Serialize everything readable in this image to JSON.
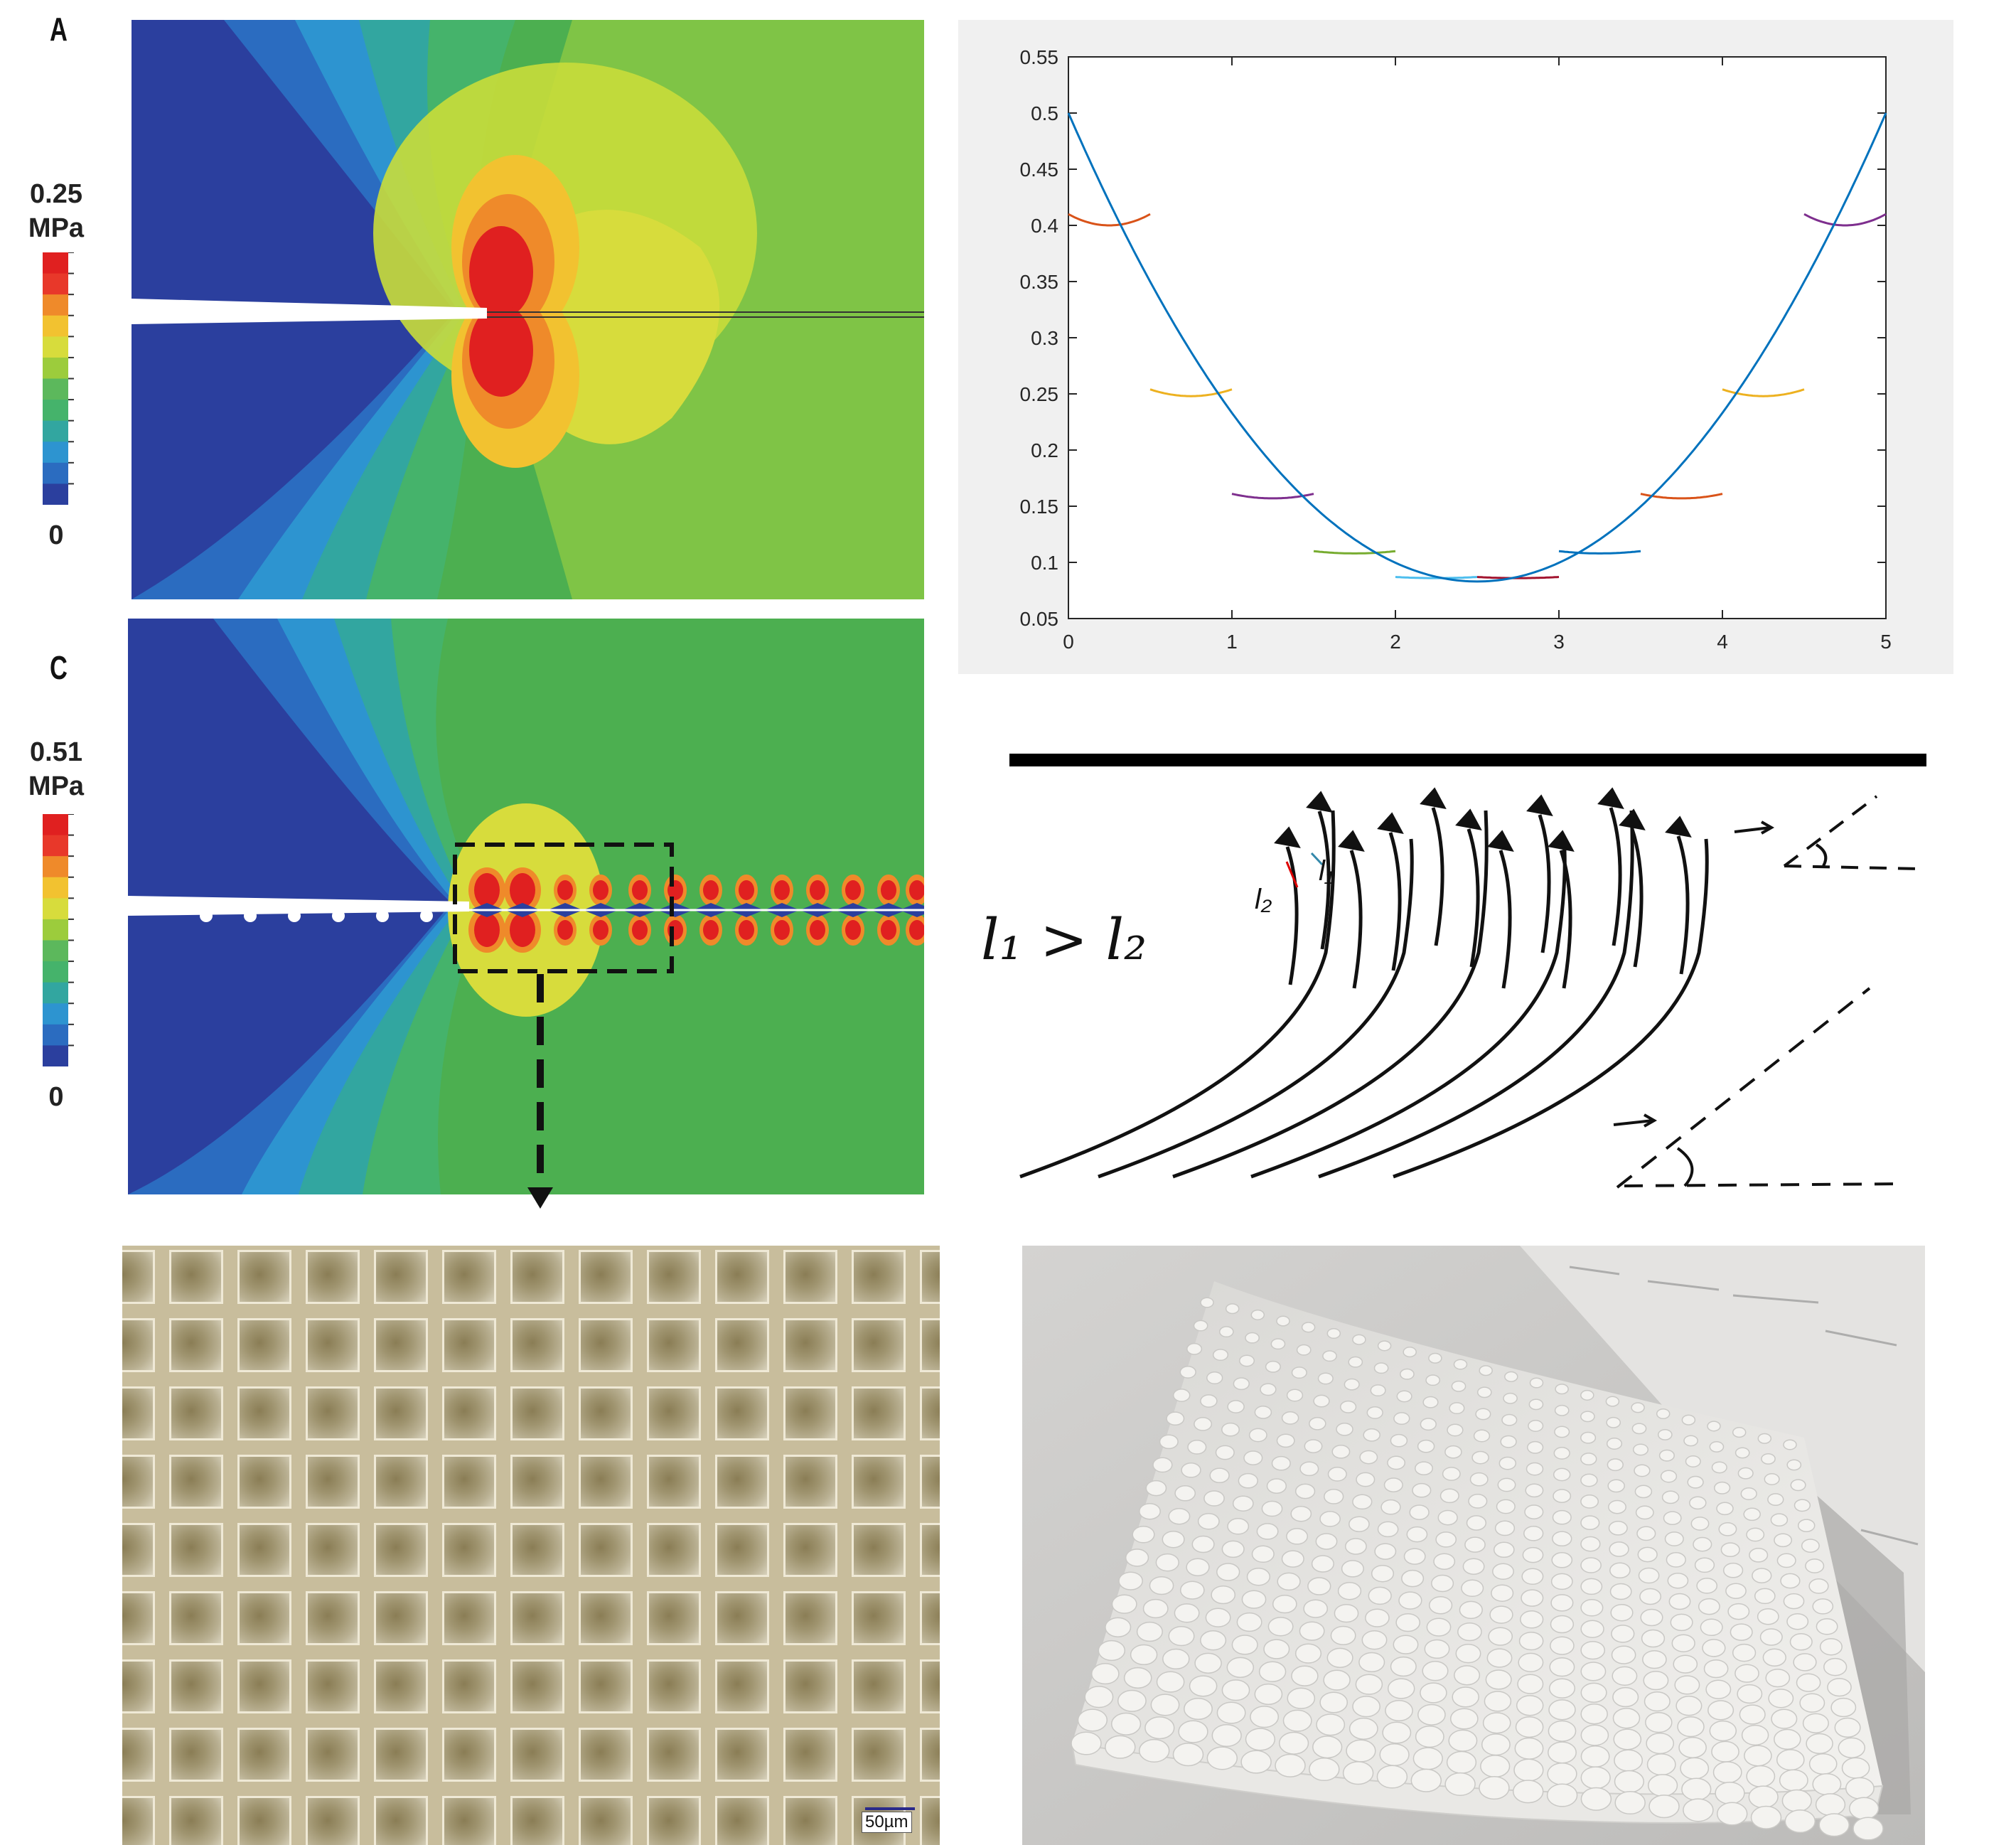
{
  "panel_a": {
    "letter": "A",
    "colorbar": {
      "max_value": "0.25",
      "unit": "MPa",
      "min_value": "0"
    }
  },
  "panel_c": {
    "letter": "C",
    "colorbar": {
      "max_value": "0.51",
      "unit": "MPa",
      "min_value": "0"
    }
  },
  "colors": {
    "contour_blue": "#2b3f9e",
    "contour_green": "#4caf50",
    "contour_red": "#e02020",
    "chart_background": "#f0f0f0"
  },
  "chart_data": {
    "type": "line",
    "title": "",
    "xlabel": "",
    "ylabel": "",
    "xlim": [
      0,
      5
    ],
    "ylim": [
      0.05,
      0.55
    ],
    "x_ticks": [
      "0",
      "1",
      "2",
      "3",
      "4",
      "5"
    ],
    "y_ticks": [
      "0.05",
      "0.1",
      "0.15",
      "0.2",
      "0.25",
      "0.3",
      "0.35",
      "0.4",
      "0.45",
      "0.5",
      "0.55"
    ],
    "grid": false,
    "main_curve": {
      "color": "#0072bd",
      "points": [
        [
          0,
          0.5
        ],
        [
          0.25,
          0.41
        ],
        [
          0.5,
          0.335
        ],
        [
          0.75,
          0.27
        ],
        [
          1,
          0.215
        ],
        [
          1.25,
          0.17
        ],
        [
          1.5,
          0.135
        ],
        [
          1.75,
          0.11
        ],
        [
          2,
          0.095
        ],
        [
          2.25,
          0.086
        ],
        [
          2.5,
          0.083
        ],
        [
          2.75,
          0.086
        ],
        [
          3,
          0.095
        ],
        [
          3.25,
          0.11
        ],
        [
          3.5,
          0.135
        ],
        [
          3.75,
          0.17
        ],
        [
          4,
          0.215
        ],
        [
          4.25,
          0.27
        ],
        [
          4.5,
          0.335
        ],
        [
          4.75,
          0.41
        ],
        [
          5,
          0.5
        ]
      ]
    },
    "arcs": [
      {
        "x_center": 0.25,
        "y_min": 0.4,
        "half_width": 0.25,
        "depth": 0.01,
        "color": "#d95319"
      },
      {
        "x_center": 0.75,
        "y_min": 0.248,
        "half_width": 0.25,
        "depth": 0.006,
        "color": "#edb120"
      },
      {
        "x_center": 1.25,
        "y_min": 0.157,
        "half_width": 0.25,
        "depth": 0.004,
        "color": "#7e2f8e"
      },
      {
        "x_center": 1.75,
        "y_min": 0.108,
        "half_width": 0.25,
        "depth": 0.002,
        "color": "#77ac30"
      },
      {
        "x_center": 2.25,
        "y_min": 0.086,
        "half_width": 0.25,
        "depth": 0.001,
        "color": "#4dbeee"
      },
      {
        "x_center": 2.75,
        "y_min": 0.086,
        "half_width": 0.25,
        "depth": 0.001,
        "color": "#a2142f"
      },
      {
        "x_center": 3.25,
        "y_min": 0.108,
        "half_width": 0.25,
        "depth": 0.002,
        "color": "#0072bd"
      },
      {
        "x_center": 3.75,
        "y_min": 0.157,
        "half_width": 0.25,
        "depth": 0.004,
        "color": "#d95319"
      },
      {
        "x_center": 4.25,
        "y_min": 0.248,
        "half_width": 0.25,
        "depth": 0.006,
        "color": "#edb120"
      },
      {
        "x_center": 4.75,
        "y_min": 0.4,
        "half_width": 0.25,
        "depth": 0.01,
        "color": "#7e2f8e"
      }
    ]
  },
  "sketch": {
    "relation_label": "l₁ > l₂",
    "label_l1": "l₁",
    "label_l2": "l₂"
  },
  "micrograph": {
    "scale_bar_label": "50µm",
    "grid_rows": 9,
    "grid_cols": 12
  },
  "photo": {
    "description_colors": {
      "plate": "#ecebe8",
      "shadow": "#b9b8b6",
      "background": "#d9d8d6"
    }
  }
}
